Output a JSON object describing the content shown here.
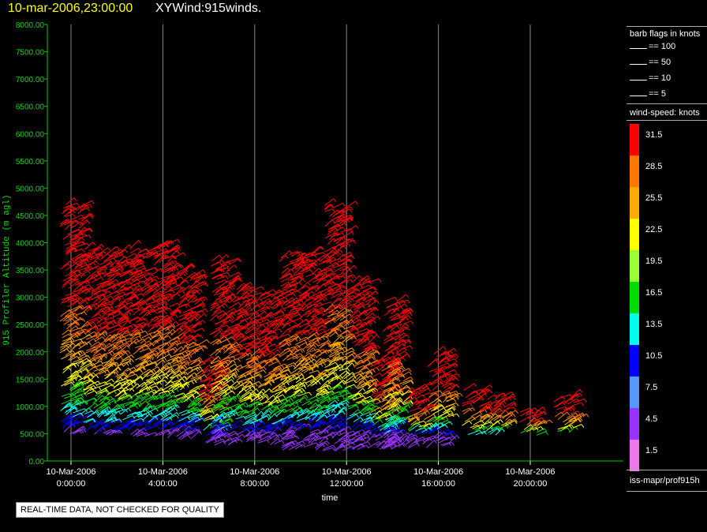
{
  "header": {
    "date_label": "10-mar-2006,23:00:00",
    "title": "XYWind:915winds."
  },
  "chart_data": {
    "type": "scatter",
    "title": "10-mar-2006,23:00:00  XYWind:915winds.",
    "xlabel": "time",
    "ylabel": "915 Profiler Altitude (m agl)",
    "ylim": [
      0,
      8000
    ],
    "x_ticks": [
      {
        "date": "10-Mar-2006",
        "time": "0:00:00"
      },
      {
        "date": "10-Mar-2006",
        "time": "4:00:00"
      },
      {
        "date": "10-Mar-2006",
        "time": "8:00:00"
      },
      {
        "date": "10-Mar-2006",
        "time": "12:00:00"
      },
      {
        "date": "10-Mar-2006",
        "time": "16:00:00"
      },
      {
        "date": "10-Mar-2006",
        "time": "20:00:00"
      }
    ],
    "y_ticks": [
      "8000.00",
      "7500.00",
      "7000.00",
      "6500.00",
      "6000.00",
      "5500.00",
      "5000.00",
      "4500.00",
      "4000.00",
      "3500.00",
      "3000.00",
      "2500.00",
      "2000.00",
      "1500.00",
      "1000.00",
      "500.00",
      "0.00"
    ],
    "grid": "vertical",
    "series": [
      {
        "hour": 0.0,
        "top": 4700,
        "bottom": 500
      },
      {
        "hour": 1.0,
        "top": 3900,
        "bottom": 500
      },
      {
        "hour": 2.0,
        "top": 3800,
        "bottom": 500
      },
      {
        "hour": 3.0,
        "top": 3900,
        "bottom": 450
      },
      {
        "hour": 4.0,
        "top": 4000,
        "bottom": 450
      },
      {
        "hour": 5.0,
        "top": 3500,
        "bottom": 400
      },
      {
        "hour": 6.0,
        "top": 1800,
        "bottom": 350
      },
      {
        "hour": 6.5,
        "top": 3700,
        "bottom": 300
      },
      {
        "hour": 7.5,
        "top": 3200,
        "bottom": 350
      },
      {
        "hour": 8.5,
        "top": 3100,
        "bottom": 300
      },
      {
        "hour": 9.5,
        "top": 3800,
        "bottom": 200
      },
      {
        "hour": 10.5,
        "top": 3800,
        "bottom": 200
      },
      {
        "hour": 11.5,
        "top": 4700,
        "bottom": 200
      },
      {
        "hour": 12.5,
        "top": 3300,
        "bottom": 200
      },
      {
        "hour": 13.5,
        "top": 1800,
        "bottom": 200
      },
      {
        "hour": 14.0,
        "top": 2900,
        "bottom": 250
      },
      {
        "hour": 15.0,
        "top": 1300,
        "bottom": 250
      },
      {
        "hour": 16.0,
        "top": 2000,
        "bottom": 300
      },
      {
        "hour": 17.5,
        "top": 1300,
        "bottom": 500
      },
      {
        "hour": 18.5,
        "top": 1200,
        "bottom": 500
      },
      {
        "hour": 20.0,
        "top": 900,
        "bottom": 500
      },
      {
        "hour": 21.5,
        "top": 1200,
        "bottom": 550
      }
    ]
  },
  "legend": {
    "flags_title": "barb flags in knots",
    "flags": [
      "== 100",
      "== 50",
      "== 10",
      "== 5"
    ],
    "speed_title": "wind-speed: knots",
    "speed_bins": [
      {
        "label": "31.5",
        "color": "#ff0000"
      },
      {
        "label": "28.5",
        "color": "#ff7700"
      },
      {
        "label": "25.5",
        "color": "#ffaa00"
      },
      {
        "label": "22.5",
        "color": "#ffff00"
      },
      {
        "label": "19.5",
        "color": "#99ff33"
      },
      {
        "label": "16.5",
        "color": "#00dd00"
      },
      {
        "label": "13.5",
        "color": "#00ffee"
      },
      {
        "label": "10.5",
        "color": "#0000ff"
      },
      {
        "label": "7.5",
        "color": "#5599ff"
      },
      {
        "label": "4.5",
        "color": "#9933ff"
      },
      {
        "label": "1.5",
        "color": "#ee77ee"
      }
    ],
    "source": "iss-mapr/prof915h"
  },
  "footer": {
    "quality_note": "REAL-TIME DATA, NOT CHECKED FOR QUALITY"
  }
}
